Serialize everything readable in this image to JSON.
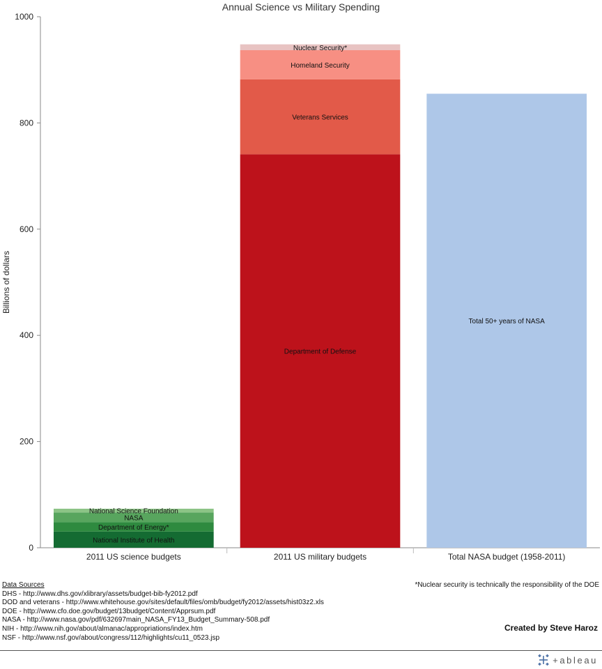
{
  "chart_data": {
    "type": "bar",
    "stacked": true,
    "title": "Annual Science vs Military Spending",
    "xlabel": "",
    "ylabel": "Billions of dollars",
    "ylim": [
      0,
      1000
    ],
    "yticks": [
      0,
      200,
      400,
      600,
      800,
      1000
    ],
    "grid": false,
    "categories": [
      "2011 US science budgets",
      "2011 US military budgets",
      "Total NASA budget (1958-2011)"
    ],
    "stacks": [
      {
        "category": "2011 US science budgets",
        "segments": [
          {
            "label": "National Institute of Health",
            "value": 30.5,
            "color": "#146b32"
          },
          {
            "label": "Department of Energy*",
            "value": 17.5,
            "color": "#2e8a3f"
          },
          {
            "label": "NASA",
            "value": 18.5,
            "color": "#58a55e"
          },
          {
            "label": "National Science Foundation",
            "value": 7,
            "color": "#8cc486"
          }
        ]
      },
      {
        "category": "2011 US military budgets",
        "segments": [
          {
            "label": "Department of Defense",
            "value": 741,
            "color": "#bd121b"
          },
          {
            "label": "Veterans Services",
            "value": 141,
            "color": "#e25a49"
          },
          {
            "label": "Homeland Security",
            "value": 55,
            "color": "#f78f83"
          },
          {
            "label": "Nuclear Security*",
            "value": 11,
            "color": "#e8c3c2"
          }
        ]
      },
      {
        "category": "Total NASA budget (1958-2011)",
        "segments": [
          {
            "label": "Total 50+ years of NASA",
            "value": 855,
            "color": "#aec7e8"
          }
        ]
      }
    ]
  },
  "sources": {
    "header": "Data Sources",
    "lines": [
      "DHS - http://www.dhs.gov/xlibrary/assets/budget-bib-fy2012.pdf",
      "DOD and veterans - http://www.whitehouse.gov/sites/default/files/omb/budget/fy2012/assets/hist03z2.xls",
      "DOE - http://www.cfo.doe.gov/budget/13budget/Content/Apprsum.pdf",
      "NASA - http://www.nasa.gov/pdf/632697main_NASA_FY13_Budget_Summary-508.pdf",
      "NIH - http://www.nih.gov/about/almanac/appropriations/index.htm",
      "NSF - http://www.nsf.gov/about/congress/112/highlights/cu11_0523.jsp"
    ]
  },
  "footnote": "*Nuclear security is technically the responsibility of the DOE",
  "credit": "Created by Steve Haroz",
  "logo_text": "+ableau",
  "colors": {
    "axis": "#888888",
    "logo": "#4a6fa5"
  }
}
